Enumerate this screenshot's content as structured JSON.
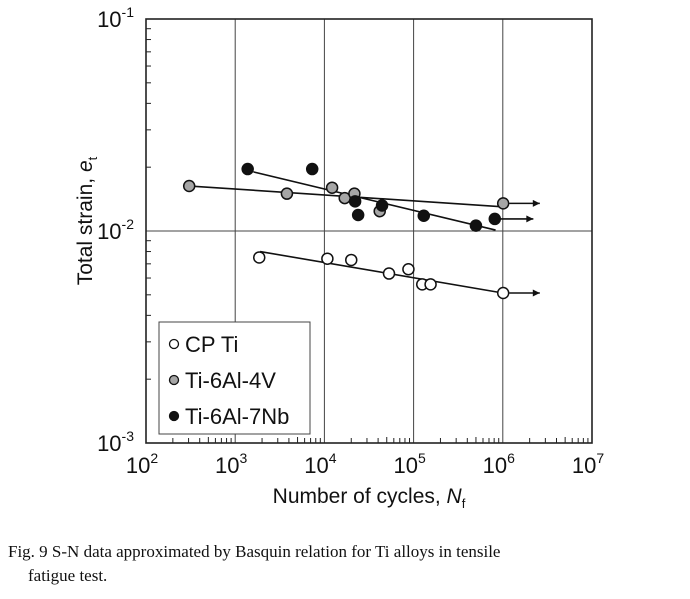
{
  "chart_data": {
    "type": "scatter",
    "title": "",
    "xlabel": "Number of cycles, ",
    "xlabel_symbol": "N",
    "xlabel_subscript": "f",
    "ylabel": "Total strain, ",
    "ylabel_symbol": "e",
    "ylabel_subscript": "t",
    "x_scale": "log",
    "y_scale": "log",
    "xlim": [
      100,
      10000000
    ],
    "ylim": [
      0.001,
      0.1
    ],
    "x_ticks": [
      {
        "base": "10",
        "exp": "2"
      },
      {
        "base": "10",
        "exp": "3"
      },
      {
        "base": "10",
        "exp": "4"
      },
      {
        "base": "10",
        "exp": "5"
      },
      {
        "base": "10",
        "exp": "6"
      },
      {
        "base": "10",
        "exp": "7"
      }
    ],
    "y_ticks": [
      {
        "base": "10",
        "exp": "-3"
      },
      {
        "base": "10",
        "exp": "-2"
      },
      {
        "base": "10",
        "exp": "-1"
      }
    ],
    "grid": true,
    "legend_position": "bottom-left",
    "series": [
      {
        "name": "CP Ti",
        "marker": "open-circle",
        "color": "#ffffff",
        "points": [
          [
            1860,
            0.0075
          ],
          [
            10800,
            0.0074
          ],
          [
            20000,
            0.0073
          ],
          [
            53000,
            0.0063
          ],
          [
            87500,
            0.0066
          ],
          [
            125000,
            0.0056
          ],
          [
            155000,
            0.0056
          ],
          [
            1010000,
            0.0051
          ]
        ],
        "fit_line": [
          [
            1900,
            0.008
          ],
          [
            1000000,
            0.0051
          ]
        ],
        "runout_arrow": {
          "from": [
            1010000,
            0.0051
          ],
          "to": [
            2600000,
            0.0051
          ]
        }
      },
      {
        "name": "Ti-6Al-4V",
        "marker": "gray-circle",
        "color": "#a6a6a6",
        "points": [
          [
            305,
            0.0163
          ],
          [
            3800,
            0.015
          ],
          [
            12200,
            0.016
          ],
          [
            16900,
            0.0143
          ],
          [
            21700,
            0.015
          ],
          [
            41700,
            0.0124
          ],
          [
            1010000,
            0.0135
          ]
        ],
        "fit_line": [
          [
            310,
            0.0163
          ],
          [
            1000000,
            0.013
          ]
        ],
        "runout_arrow": {
          "from": [
            1010000,
            0.0135
          ],
          "to": [
            2600000,
            0.0135
          ]
        }
      },
      {
        "name": "Ti-6Al-7Nb",
        "marker": "filled-circle",
        "color": "#111111",
        "points": [
          [
            1380,
            0.0196
          ],
          [
            7300,
            0.0196
          ],
          [
            22100,
            0.0138
          ],
          [
            23900,
            0.0119
          ],
          [
            44300,
            0.0132
          ],
          [
            130000,
            0.0118
          ],
          [
            500000,
            0.0106
          ],
          [
            813000,
            0.0114
          ]
        ],
        "fit_line": [
          [
            1600,
            0.019
          ],
          [
            830000,
            0.0101
          ]
        ],
        "runout_arrow": {
          "from": [
            813000,
            0.0114
          ],
          "to": [
            2200000,
            0.0114
          ]
        }
      }
    ]
  },
  "caption": {
    "line1": "Fig. 9   S-N data approximated by Basquin relation for Ti alloys in tensile",
    "line2": "fatigue test."
  }
}
